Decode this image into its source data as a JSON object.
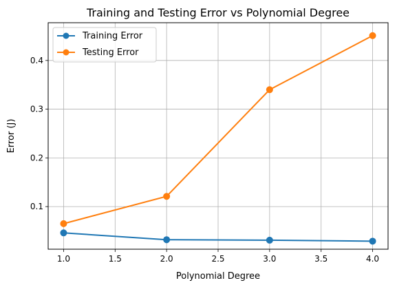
{
  "chart_data": {
    "type": "line",
    "title": "Training and Testing Error vs Polynomial Degree",
    "xlabel": "Polynomial Degree",
    "ylabel": "Error (J)",
    "x": [
      1,
      2,
      3,
      4
    ],
    "xlim": [
      0.85,
      4.15
    ],
    "ylim": [
      0.0125,
      0.4775
    ],
    "xticks": [
      "1.0",
      "1.5",
      "2.0",
      "2.5",
      "3.0",
      "3.5",
      "4.0"
    ],
    "yticks": [
      "0.1",
      "0.2",
      "0.3",
      "0.4"
    ],
    "grid": true,
    "legend_position": "top-left",
    "series": [
      {
        "name": "Training Error",
        "values": [
          0.046,
          0.032,
          0.031,
          0.029
        ],
        "color": "#1f77b4"
      },
      {
        "name": "Testing Error",
        "values": [
          0.065,
          0.121,
          0.34,
          0.451
        ],
        "color": "#ff7f0e"
      }
    ]
  }
}
